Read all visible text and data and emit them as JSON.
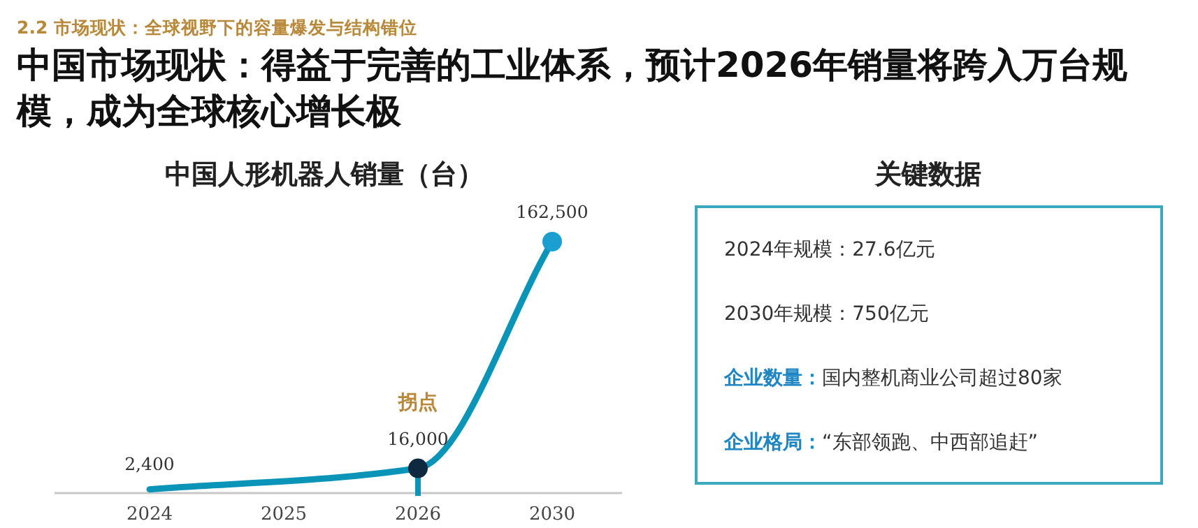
{
  "chart_data": [
    {
      "type": "line",
      "title": "中国人形机器人销量（台）",
      "annotations": [
        "2.2 市场现状：全球视野下的容量爆发与结构错位",
        "中国市场现状：得益于完善的工业体系，预计2026年销量将跨入万台规模，成为全球核心增长极"
      ],
      "categories": [
        "2024",
        "2025",
        "2026",
        "2030"
      ],
      "values": [
        2400,
        null,
        16000,
        162500
      ],
      "value_labels": [
        "2,400",
        null,
        "16,000",
        "162,500"
      ],
      "color": "#0a95b8",
      "colors": [
        null,
        null,
        "#0f2a40",
        "#1a9fd0"
      ],
      "marker": "circle",
      "tick_labels": "x",
      "ref_lines": [
        {
          "axis": "x",
          "value": "2026",
          "label": "拐点",
          "color": "#0a95b8"
        }
      ]
    },
    {
      "type": "other",
      "title": "关键数据",
      "annotations": [
        "2024年规模：27.6亿元",
        "2030年规模：750亿元",
        "**企业数量：**国内整机商业公司超过80家",
        "**企业格局：**“东部领跑、中西部追赶”"
      ]
    }
  ]
}
